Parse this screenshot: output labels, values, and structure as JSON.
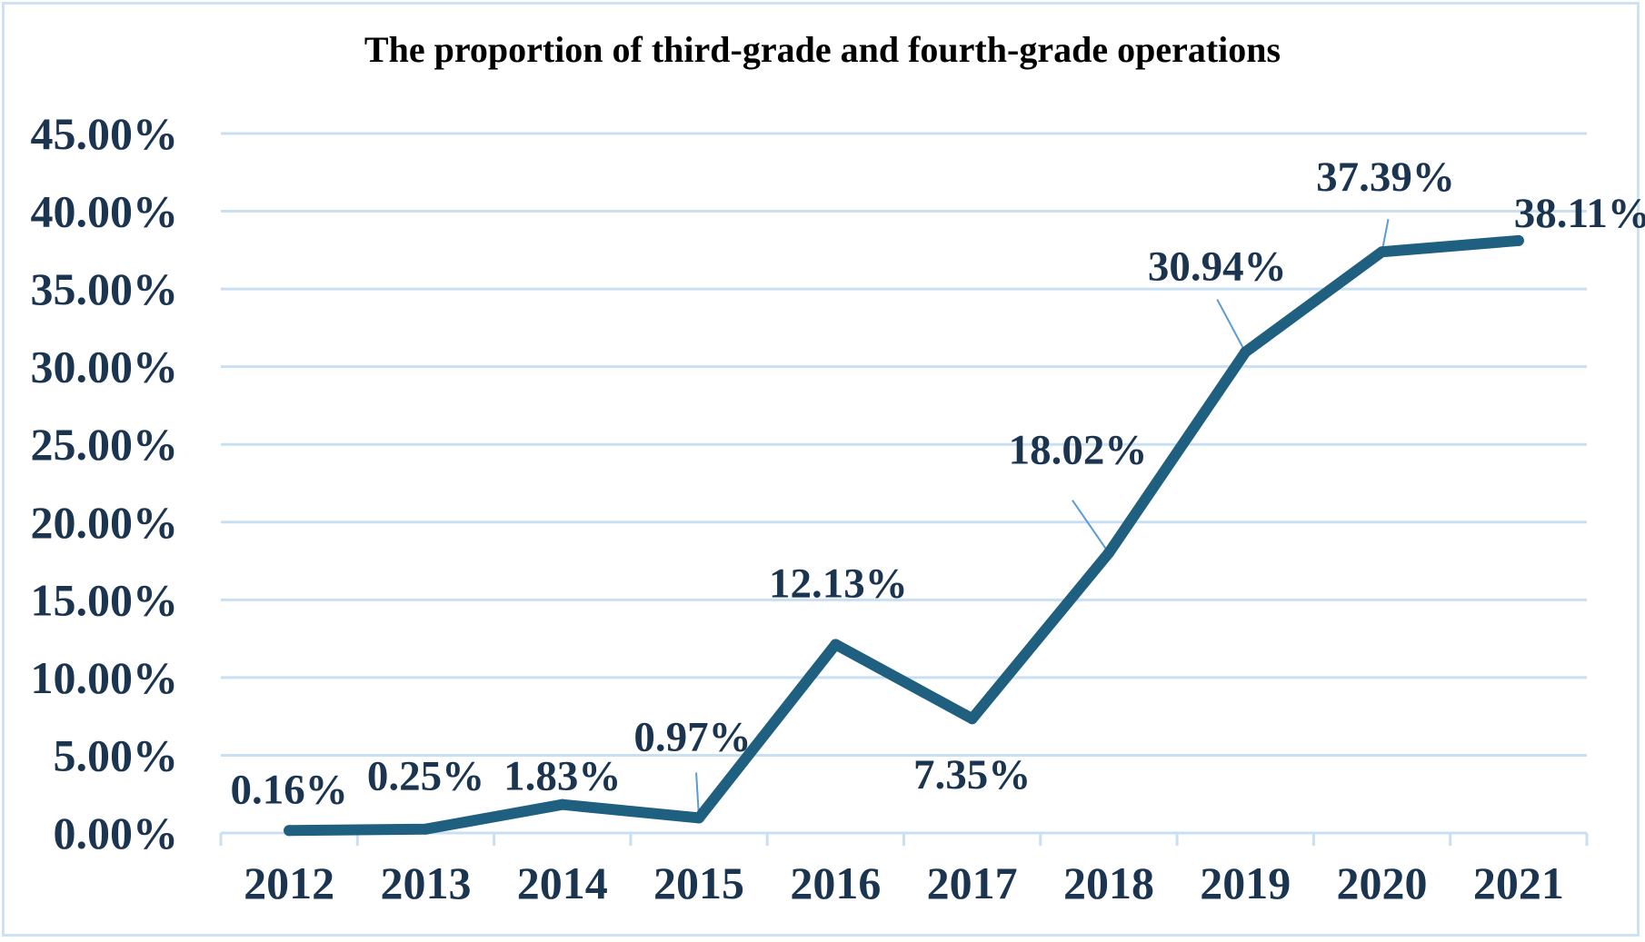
{
  "chart_data": {
    "type": "line",
    "title": "The proportion of third-grade and fourth-grade operations",
    "xlabel": "",
    "ylabel": "",
    "categories": [
      "2012",
      "2013",
      "2014",
      "2015",
      "2016",
      "2017",
      "2018",
      "2019",
      "2020",
      "2021"
    ],
    "series": [
      {
        "values": [
          0.16,
          0.25,
          1.83,
          0.97,
          12.13,
          7.35,
          18.02,
          30.94,
          37.39,
          38.11
        ],
        "data_labels": [
          "0.16%",
          "0.25%",
          "1.83%",
          "0.97%",
          "12.13%",
          "7.35%",
          "18.02%",
          "30.94%",
          "37.39%",
          "38.11%"
        ],
        "color": "#1f5f7f"
      }
    ],
    "ylim": [
      0,
      45
    ],
    "yticks": [
      0,
      5,
      10,
      15,
      20,
      25,
      30,
      35,
      40,
      45
    ],
    "ytick_labels": [
      "0.00%",
      "5.00%",
      "10.00%",
      "15.00%",
      "20.00%",
      "25.00%",
      "30.00%",
      "35.00%",
      "40.00%",
      "45.00%"
    ],
    "grid": true,
    "legend": "none",
    "colors": {
      "line": "#1f5f7f",
      "gridline": "#c9dff2",
      "axis": "#c9dff2",
      "text": "#1b3550",
      "border": "#cfe2f5",
      "leader_line": "#5b9bd5"
    }
  }
}
